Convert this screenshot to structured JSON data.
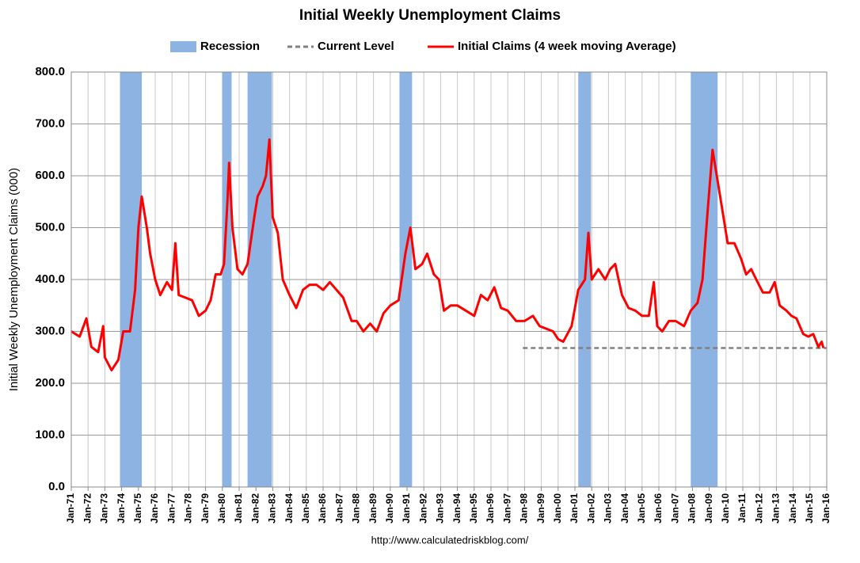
{
  "chart_data": {
    "type": "line",
    "title": "Initial Weekly Unemployment Claims",
    "y_label": "Initial Weekly Unemployment Claims (000)",
    "source": "http://www.calculatedriskblog.com/",
    "grid": true,
    "legend_position": "top",
    "recessions": {
      "name": "Recession",
      "color": "#8db3e2",
      "ranges": [
        [
          1973.9,
          1975.2
        ],
        [
          1980.0,
          1980.55
        ],
        [
          1981.5,
          1982.95
        ],
        [
          1990.55,
          1991.3
        ],
        [
          2001.2,
          2001.95
        ],
        [
          2007.9,
          2009.5
        ]
      ]
    },
    "current_level": {
      "name": "Current Level",
      "color": "#808080",
      "value": 268,
      "x_range": [
        1997.9,
        2016
      ]
    },
    "x": [
      1971.0,
      1971.5,
      1971.9,
      1972.2,
      1972.6,
      1972.9,
      1973.0,
      1973.4,
      1973.8,
      1974.1,
      1974.5,
      1974.8,
      1975.0,
      1975.2,
      1975.5,
      1975.7,
      1976.0,
      1976.3,
      1976.7,
      1977.0,
      1977.2,
      1977.4,
      1977.8,
      1978.2,
      1978.6,
      1979.0,
      1979.3,
      1979.6,
      1979.9,
      1980.1,
      1980.3,
      1980.4,
      1980.6,
      1980.9,
      1981.2,
      1981.5,
      1981.9,
      1982.1,
      1982.4,
      1982.6,
      1982.8,
      1983.0,
      1983.3,
      1983.6,
      1984.0,
      1984.4,
      1984.8,
      1985.2,
      1985.6,
      1986.0,
      1986.4,
      1986.8,
      1987.2,
      1987.7,
      1988.0,
      1988.4,
      1988.8,
      1989.2,
      1989.6,
      1990.0,
      1990.5,
      1990.9,
      1991.2,
      1991.5,
      1991.9,
      1992.2,
      1992.6,
      1992.9,
      1993.2,
      1993.6,
      1994.0,
      1994.5,
      1995.0,
      1995.4,
      1995.8,
      1996.2,
      1996.6,
      1997.0,
      1997.5,
      1998.0,
      1998.5,
      1998.9,
      1999.3,
      1999.7,
      2000.0,
      2000.3,
      2000.8,
      2001.2,
      2001.6,
      2001.8,
      2002.0,
      2002.4,
      2002.8,
      2003.1,
      2003.4,
      2003.8,
      2004.2,
      2004.6,
      2005.0,
      2005.4,
      2005.7,
      2005.9,
      2006.2,
      2006.6,
      2007.0,
      2007.5,
      2007.9,
      2008.3,
      2008.6,
      2008.9,
      2009.2,
      2009.5,
      2009.8,
      2010.1,
      2010.5,
      2010.9,
      2011.2,
      2011.5,
      2011.8,
      2012.2,
      2012.6,
      2012.9,
      2013.2,
      2013.6,
      2013.9,
      2014.2,
      2014.6,
      2014.9,
      2015.2,
      2015.5,
      2015.7,
      2015.8
    ],
    "series": [
      {
        "name": "Initial Claims (4 week moving Average)",
        "color": "#ff0000",
        "values": [
          300,
          290,
          325,
          270,
          260,
          310,
          250,
          225,
          245,
          300,
          300,
          380,
          500,
          560,
          500,
          450,
          400,
          370,
          395,
          380,
          470,
          370,
          365,
          360,
          330,
          340,
          360,
          410,
          410,
          430,
          550,
          625,
          500,
          420,
          410,
          430,
          520,
          560,
          580,
          600,
          670,
          520,
          490,
          400,
          370,
          345,
          380,
          390,
          390,
          380,
          395,
          380,
          365,
          320,
          320,
          300,
          315,
          300,
          335,
          350,
          360,
          450,
          500,
          420,
          430,
          450,
          410,
          400,
          340,
          350,
          350,
          340,
          330,
          370,
          360,
          385,
          345,
          340,
          320,
          320,
          330,
          310,
          305,
          300,
          285,
          280,
          310,
          380,
          400,
          490,
          400,
          420,
          400,
          420,
          430,
          370,
          345,
          340,
          330,
          330,
          395,
          310,
          300,
          320,
          320,
          310,
          340,
          355,
          400,
          530,
          650,
          590,
          530,
          470,
          470,
          440,
          410,
          420,
          400,
          375,
          375,
          395,
          350,
          340,
          330,
          325,
          295,
          290,
          295,
          270,
          280,
          268
        ]
      }
    ],
    "xlim": [
      1971,
      2016
    ],
    "ylim": [
      0,
      800
    ],
    "yticks": [
      {
        "value": 0,
        "label": "0.0"
      },
      {
        "value": 100,
        "label": "100.0"
      },
      {
        "value": 200,
        "label": "200.0"
      },
      {
        "value": 300,
        "label": "300.0"
      },
      {
        "value": 400,
        "label": "400.0"
      },
      {
        "value": 500,
        "label": "500.0"
      },
      {
        "value": 600,
        "label": "600.0"
      },
      {
        "value": 700,
        "label": "700.0"
      },
      {
        "value": 800,
        "label": "800.0"
      }
    ],
    "xticks": [
      {
        "value": 1971,
        "label": "Jan-71"
      },
      {
        "value": 1972,
        "label": "Jan-72"
      },
      {
        "value": 1973,
        "label": "Jan-73"
      },
      {
        "value": 1974,
        "label": "Jan-74"
      },
      {
        "value": 1975,
        "label": "Jan-75"
      },
      {
        "value": 1976,
        "label": "Jan-76"
      },
      {
        "value": 1977,
        "label": "Jan-77"
      },
      {
        "value": 1978,
        "label": "Jan-78"
      },
      {
        "value": 1979,
        "label": "Jan-79"
      },
      {
        "value": 1980,
        "label": "Jan-80"
      },
      {
        "value": 1981,
        "label": "Jan-81"
      },
      {
        "value": 1982,
        "label": "Jan-82"
      },
      {
        "value": 1983,
        "label": "Jan-83"
      },
      {
        "value": 1984,
        "label": "Jan-84"
      },
      {
        "value": 1985,
        "label": "Jan-85"
      },
      {
        "value": 1986,
        "label": "Jan-86"
      },
      {
        "value": 1987,
        "label": "Jan-87"
      },
      {
        "value": 1988,
        "label": "Jan-88"
      },
      {
        "value": 1989,
        "label": "Jan-89"
      },
      {
        "value": 1990,
        "label": "Jan-90"
      },
      {
        "value": 1991,
        "label": "Jan-91"
      },
      {
        "value": 1992,
        "label": "Jan-92"
      },
      {
        "value": 1993,
        "label": "Jan-93"
      },
      {
        "value": 1994,
        "label": "Jan-94"
      },
      {
        "value": 1995,
        "label": "Jan-95"
      },
      {
        "value": 1996,
        "label": "Jan-96"
      },
      {
        "value": 1997,
        "label": "Jan-97"
      },
      {
        "value": 1998,
        "label": "Jan-98"
      },
      {
        "value": 1999,
        "label": "Jan-99"
      },
      {
        "value": 2000,
        "label": "Jan-00"
      },
      {
        "value": 2001,
        "label": "Jan-01"
      },
      {
        "value": 2002,
        "label": "Jan-02"
      },
      {
        "value": 2003,
        "label": "Jan-03"
      },
      {
        "value": 2004,
        "label": "Jan-04"
      },
      {
        "value": 2005,
        "label": "Jan-05"
      },
      {
        "value": 2006,
        "label": "Jan-06"
      },
      {
        "value": 2007,
        "label": "Jan-07"
      },
      {
        "value": 2008,
        "label": "Jan-08"
      },
      {
        "value": 2009,
        "label": "Jan-09"
      },
      {
        "value": 2010,
        "label": "Jan-10"
      },
      {
        "value": 2011,
        "label": "Jan-11"
      },
      {
        "value": 2012,
        "label": "Jan-12"
      },
      {
        "value": 2013,
        "label": "Jan-13"
      },
      {
        "value": 2014,
        "label": "Jan-14"
      },
      {
        "value": 2015,
        "label": "Jan-15"
      },
      {
        "value": 2016,
        "label": "Jan-16"
      }
    ]
  }
}
